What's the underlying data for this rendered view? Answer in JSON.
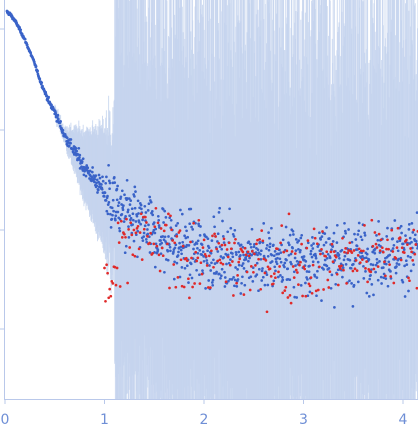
{
  "chart_data": {
    "type": "scatter",
    "title": "",
    "xlabel": "",
    "ylabel": "",
    "x_ticks": [
      "0",
      "1",
      "2",
      "3",
      "4"
    ],
    "x_tick_values": [
      0,
      1,
      2,
      3,
      4
    ],
    "xlim": [
      0,
      4.15
    ],
    "y_scale": "log",
    "y_tick_count": 4,
    "y_tick_labels_shown": false,
    "grid": false,
    "legend": "none",
    "colors": {
      "axis": "#b9c8ea",
      "tick_label": "#6f8fd6",
      "error_bars": "#c4d3ee",
      "series_experimental": "#3a63c8",
      "series_outliers": "#e02a2a"
    },
    "series": [
      {
        "role": "experimental",
        "color": "#3a63c8",
        "points": [
          [
            0.02,
            0.97
          ],
          [
            0.05,
            0.965
          ],
          [
            0.08,
            0.955
          ],
          [
            0.12,
            0.94
          ],
          [
            0.16,
            0.92
          ],
          [
            0.2,
            0.9
          ],
          [
            0.25,
            0.87
          ],
          [
            0.3,
            0.84
          ],
          [
            0.35,
            0.8
          ],
          [
            0.4,
            0.77
          ],
          [
            0.45,
            0.74
          ],
          [
            0.5,
            0.72
          ],
          [
            0.55,
            0.69
          ],
          [
            0.6,
            0.66
          ],
          [
            0.7,
            0.62
          ],
          [
            0.8,
            0.58
          ],
          [
            0.9,
            0.55
          ],
          [
            1.0,
            0.52
          ],
          [
            1.1,
            0.49
          ],
          [
            1.2,
            0.46
          ],
          [
            1.3,
            0.44
          ],
          [
            1.4,
            0.42
          ],
          [
            1.5,
            0.41
          ],
          [
            1.6,
            0.4
          ],
          [
            1.7,
            0.39
          ],
          [
            1.8,
            0.38
          ],
          [
            1.9,
            0.37
          ],
          [
            2.0,
            0.37
          ],
          [
            2.2,
            0.36
          ],
          [
            2.4,
            0.355
          ],
          [
            2.6,
            0.35
          ],
          [
            2.8,
            0.35
          ],
          [
            3.0,
            0.35
          ],
          [
            3.2,
            0.35
          ],
          [
            3.4,
            0.355
          ],
          [
            3.6,
            0.36
          ],
          [
            3.8,
            0.365
          ],
          [
            4.0,
            0.37
          ],
          [
            4.12,
            0.375
          ]
        ],
        "scatter_from_x": 1.0,
        "scatter_spread": 0.09
      },
      {
        "role": "outliers",
        "color": "#e02a2a",
        "points": [
          [
            1.0,
            0.3
          ],
          [
            1.05,
            0.28
          ],
          [
            1.1,
            0.3
          ],
          [
            1.2,
            0.38
          ],
          [
            1.3,
            0.41
          ],
          [
            1.4,
            0.4
          ],
          [
            1.5,
            0.39
          ],
          [
            1.6,
            0.38
          ],
          [
            1.7,
            0.37
          ],
          [
            1.8,
            0.36
          ],
          [
            2.0,
            0.35
          ],
          [
            2.2,
            0.35
          ],
          [
            2.4,
            0.34
          ],
          [
            2.6,
            0.34
          ],
          [
            2.8,
            0.34
          ],
          [
            3.0,
            0.34
          ],
          [
            3.2,
            0.34
          ],
          [
            3.4,
            0.35
          ],
          [
            3.6,
            0.355
          ],
          [
            3.8,
            0.36
          ],
          [
            4.0,
            0.37
          ],
          [
            4.12,
            0.38
          ]
        ],
        "scatter_spread": 0.1
      }
    ]
  }
}
